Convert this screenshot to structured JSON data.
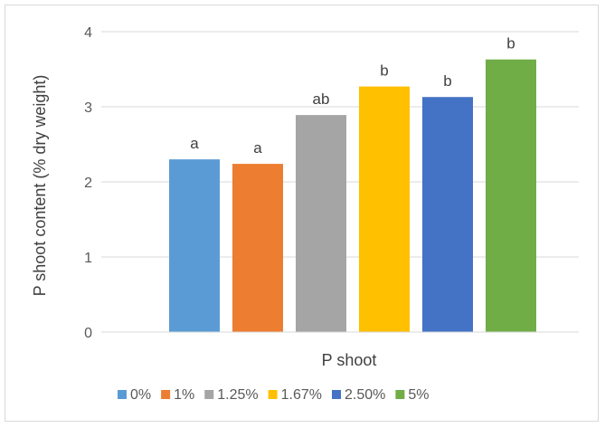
{
  "chart_data": {
    "type": "bar",
    "xlabel": "P shoot",
    "ylabel": "P shoot content (% dry weight)",
    "ylim": [
      0,
      4
    ],
    "yticks": [
      0,
      1,
      2,
      3,
      4
    ],
    "grid": true,
    "legend_position": "bottom",
    "series": [
      {
        "name": "0%",
        "value": 2.3,
        "color": "#5b9bd5",
        "label": "a"
      },
      {
        "name": "1%",
        "value": 2.24,
        "color": "#ed7d31",
        "label": "a"
      },
      {
        "name": "1.25%",
        "value": 2.89,
        "color": "#a5a5a5",
        "label": "ab"
      },
      {
        "name": "1.67%",
        "value": 3.27,
        "color": "#ffc000",
        "label": "b"
      },
      {
        "name": "2.50%",
        "value": 3.13,
        "color": "#4472c4",
        "label": "b"
      },
      {
        "name": "5%",
        "value": 3.63,
        "color": "#70ad47",
        "label": "b"
      }
    ]
  }
}
